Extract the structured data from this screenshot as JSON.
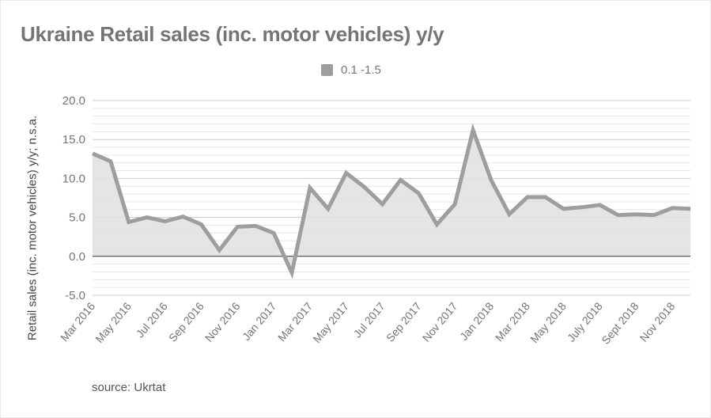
{
  "title": "Ukraine Retail sales (inc. motor vehicles) y/y",
  "legend": {
    "label": "0.1 -1.5",
    "color": "#9e9e9e"
  },
  "y_axis_title": "Retail sales (inc. motor vehicles) y/y; n.s.a.",
  "source": "source: Ukrtat",
  "colors": {
    "line": "#9e9e9e",
    "area_fill": "#e0e0e0",
    "gridline_major": "#cccccc",
    "gridline_minor": "#e6e6e6",
    "zero_line": "#333333",
    "text": "#757575"
  },
  "chart_data": {
    "type": "area",
    "title": "Ukraine Retail sales (inc. motor vehicles) y/y",
    "xlabel": "",
    "ylabel": "Retail sales (inc. motor vehicles) y/y; n.s.a.",
    "ylim": [
      -5,
      20
    ],
    "yticks": [
      "20.0",
      "15.0",
      "10.0",
      "5.0",
      "0.0",
      "-5.0"
    ],
    "ytick_values": [
      20,
      15,
      10,
      5,
      0,
      -5
    ],
    "grid": true,
    "legend_position": "top",
    "x": [
      "Mar 2016",
      "Apr 2016",
      "May 2016",
      "Jun 2016",
      "Jul 2016",
      "Aug 2016",
      "Sep 2016",
      "Oct 2016",
      "Nov 2016",
      "Dec 2016",
      "Jan 2017",
      "Feb 2017",
      "Mar 2017",
      "Apr 2017",
      "May 2017",
      "Jun 2017",
      "Jul 2017",
      "Aug 2017",
      "Sep 2017",
      "Oct 2017",
      "Nov 2017",
      "Dec 2017",
      "Jan 2018",
      "Feb 2018",
      "Mar 2018",
      "Apr 2018",
      "May 2018",
      "Jun 2018",
      "Jul 2018",
      "Aug 2018",
      "Sep 2018",
      "Oct 2018",
      "Nov 2018",
      "Dec 2018"
    ],
    "xtick_labels": [
      "Mar 2016",
      "May 2016",
      "Jul 2016",
      "Sep 2016",
      "Nov 2016",
      "Jan 2017",
      "Mar 2017",
      "May 2017",
      "Jul 2017",
      "Sep 2017",
      "Nov 2017",
      "Jan 2018",
      "Mar 2018",
      "May 2018",
      "July 2018",
      "Sept 2018",
      "Nov 2018"
    ],
    "series": [
      {
        "name": "0.1 -1.5",
        "values": [
          13.2,
          12.2,
          4.4,
          5.0,
          4.5,
          5.1,
          4.1,
          0.8,
          3.8,
          3.9,
          3.0,
          -2.1,
          8.8,
          6.1,
          10.7,
          8.9,
          6.7,
          9.8,
          8.1,
          4.1,
          6.7,
          16.2,
          9.8,
          5.4,
          7.6,
          7.6,
          6.1,
          6.3,
          6.6,
          5.3,
          5.4,
          5.3,
          6.2,
          6.1
        ]
      }
    ]
  }
}
